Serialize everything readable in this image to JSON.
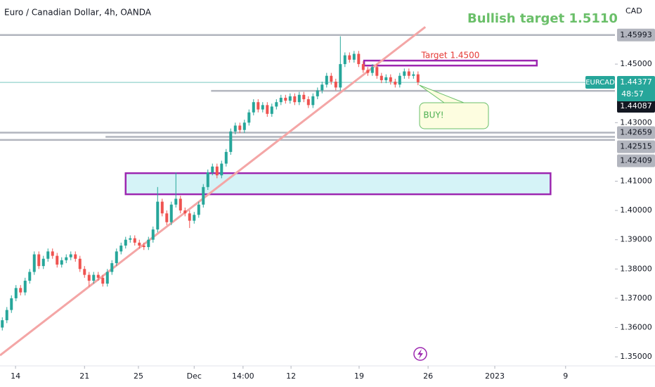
{
  "chart_data": {
    "type": "candlestick",
    "title": "Euro / Canadian Dollar, 4h, OANDA",
    "currency": "CAD",
    "symbol": "EURCAD",
    "last_price": {
      "value": 1.44377,
      "label": "1.44377"
    },
    "countdown": "48:57",
    "up_color": "#26a69a",
    "down_color": "#ef5350",
    "open": [
      1.36,
      1.3625,
      1.366,
      1.37,
      1.3735,
      1.372,
      1.376,
      1.379,
      1.385,
      1.381,
      1.3835,
      1.386,
      1.3845,
      1.3815,
      1.383,
      1.384,
      1.385,
      1.3835,
      1.38,
      1.378,
      1.376,
      1.378,
      1.377,
      1.375,
      1.379,
      1.382,
      1.386,
      1.388,
      1.39,
      1.3905,
      1.389,
      1.388,
      1.3875,
      1.39,
      1.3935,
      1.403,
      1.399,
      1.396,
      1.402,
      1.404,
      1.4,
      1.399,
      1.3965,
      1.3985,
      1.402,
      1.408,
      1.413,
      1.415,
      1.412,
      1.416,
      1.42,
      1.427,
      1.429,
      1.4275,
      1.43,
      1.4335,
      1.437,
      1.4345,
      1.436,
      1.433,
      1.4355,
      1.437,
      1.4385,
      1.4375,
      1.439,
      1.437,
      1.4395,
      1.438,
      1.436,
      1.439,
      1.441,
      1.443,
      1.446,
      1.444,
      1.442,
      1.45,
      1.453,
      1.4515,
      1.4535,
      1.45,
      1.448,
      1.447,
      1.449,
      1.446,
      1.4445,
      1.4455,
      1.444,
      1.443,
      1.446,
      1.4475,
      1.446,
      1.4465
    ],
    "high": [
      1.3635,
      1.367,
      1.371,
      1.3745,
      1.3745,
      1.377,
      1.38,
      1.386,
      1.386,
      1.3845,
      1.387,
      1.387,
      1.3855,
      1.384,
      1.385,
      1.386,
      1.386,
      1.3845,
      1.381,
      1.379,
      1.379,
      1.379,
      1.378,
      1.38,
      1.383,
      1.387,
      1.389,
      1.391,
      1.3915,
      1.3915,
      1.39,
      1.389,
      1.391,
      1.3945,
      1.408,
      1.404,
      1.4,
      1.403,
      1.413,
      1.405,
      1.401,
      1.4,
      1.3995,
      1.403,
      1.409,
      1.414,
      1.416,
      1.416,
      1.417,
      1.421,
      1.428,
      1.43,
      1.43,
      1.431,
      1.4345,
      1.438,
      1.438,
      1.437,
      1.437,
      1.4365,
      1.438,
      1.4395,
      1.4395,
      1.44,
      1.44,
      1.4405,
      1.4405,
      1.439,
      1.44,
      1.442,
      1.444,
      1.447,
      1.447,
      1.445,
      1.4595,
      1.454,
      1.454,
      1.4545,
      1.4545,
      1.451,
      1.449,
      1.45,
      1.45,
      1.447,
      1.4465,
      1.4465,
      1.445,
      1.447,
      1.4485,
      1.4485,
      1.4475,
      1.4475
    ],
    "low": [
      1.359,
      1.3615,
      1.365,
      1.369,
      1.371,
      1.371,
      1.375,
      1.378,
      1.38,
      1.38,
      1.3825,
      1.3835,
      1.3805,
      1.3805,
      1.382,
      1.383,
      1.3825,
      1.379,
      1.377,
      1.374,
      1.375,
      1.376,
      1.374,
      1.374,
      1.378,
      1.381,
      1.385,
      1.387,
      1.389,
      1.388,
      1.387,
      1.3865,
      1.3865,
      1.389,
      1.3925,
      1.398,
      1.395,
      1.395,
      1.401,
      1.399,
      1.398,
      1.394,
      1.3955,
      1.3975,
      1.401,
      1.407,
      1.412,
      1.411,
      1.411,
      1.415,
      1.419,
      1.426,
      1.4265,
      1.4265,
      1.429,
      1.4325,
      1.4335,
      1.4335,
      1.432,
      1.432,
      1.4345,
      1.436,
      1.4365,
      1.4365,
      1.436,
      1.436,
      1.437,
      1.435,
      1.435,
      1.438,
      1.44,
      1.442,
      1.443,
      1.441,
      1.441,
      1.449,
      1.4505,
      1.4505,
      1.449,
      1.447,
      1.446,
      1.446,
      1.445,
      1.4435,
      1.4435,
      1.443,
      1.442,
      1.442,
      1.445,
      1.445,
      1.445,
      1.4428
    ],
    "close": [
      1.3625,
      1.366,
      1.37,
      1.3735,
      1.372,
      1.376,
      1.379,
      1.385,
      1.381,
      1.3835,
      1.386,
      1.3845,
      1.3815,
      1.383,
      1.384,
      1.385,
      1.3835,
      1.38,
      1.378,
      1.376,
      1.378,
      1.377,
      1.375,
      1.379,
      1.382,
      1.386,
      1.388,
      1.39,
      1.3905,
      1.389,
      1.388,
      1.3875,
      1.39,
      1.3935,
      1.403,
      1.399,
      1.396,
      1.402,
      1.404,
      1.4,
      1.399,
      1.3965,
      1.3985,
      1.402,
      1.408,
      1.413,
      1.415,
      1.412,
      1.416,
      1.42,
      1.427,
      1.429,
      1.4275,
      1.43,
      1.4335,
      1.437,
      1.4345,
      1.436,
      1.433,
      1.4355,
      1.437,
      1.4385,
      1.4375,
      1.439,
      1.437,
      1.4395,
      1.438,
      1.436,
      1.439,
      1.441,
      1.443,
      1.446,
      1.444,
      1.442,
      1.45,
      1.453,
      1.4515,
      1.4535,
      1.45,
      1.448,
      1.447,
      1.449,
      1.446,
      1.4445,
      1.4455,
      1.444,
      1.443,
      1.446,
      1.4475,
      1.446,
      1.4465,
      1.4438
    ],
    "xlim": [
      -0.5,
      134.1
    ],
    "xticks": [
      {
        "value": 2.9,
        "label": "14"
      },
      {
        "value": 18,
        "label": "21"
      },
      {
        "value": 29.8,
        "label": "25"
      },
      {
        "value": 42,
        "label": "Dec"
      },
      {
        "value": 52.7,
        "label": "14:00"
      },
      {
        "value": 63.2,
        "label": "12"
      },
      {
        "value": 78.1,
        "label": "19"
      },
      {
        "value": 93.2,
        "label": "26"
      },
      {
        "value": 107.8,
        "label": "2023"
      },
      {
        "value": 123.3,
        "label": "9"
      }
    ],
    "ylim": [
      1.3469,
      1.4719
    ],
    "yticks": [
      {
        "value": 1.35,
        "label": "1.35000"
      },
      {
        "value": 1.36,
        "label": "1.36000"
      },
      {
        "value": 1.37,
        "label": "1.37000"
      },
      {
        "value": 1.38,
        "label": "1.38000"
      },
      {
        "value": 1.39,
        "label": "1.39000"
      },
      {
        "value": 1.4,
        "label": "1.40000"
      },
      {
        "value": 1.41,
        "label": "1.41000"
      },
      {
        "value": 1.43,
        "label": "1.43000"
      },
      {
        "value": 1.45,
        "label": "1.45000"
      }
    ],
    "price_lines": [
      {
        "value": 1.45993,
        "label": "1.45993",
        "start": -0.5
      },
      {
        "value": 1.44087,
        "label": "1.44087",
        "start": 45.7
      },
      {
        "value": 1.42659,
        "label": "1.42659",
        "start": -0.5
      },
      {
        "value": 1.42515,
        "label": "1.42515",
        "start": 22.6
      },
      {
        "value": 1.42409,
        "label": "1.42409",
        "start": -0.5
      }
    ],
    "trendline": {
      "x": [
        -0.5,
        92.6
      ],
      "y": [
        1.3505,
        1.4627
      ],
      "color": "#f4a6a6"
    },
    "zones": [
      {
        "x": [
          79.2,
          117
        ],
        "y": [
          1.4495,
          1.4512
        ],
        "label": "Target 1.4500",
        "fill": "none",
        "color": "#9c27b0"
      },
      {
        "x": [
          27,
          120
        ],
        "y": [
          1.40553,
          1.41274
        ],
        "fill": "#d5f3f7",
        "color": "#9c27b0"
      }
    ],
    "bullish_note": "Bullish target 1.5110",
    "buy_note": "BUY!"
  }
}
